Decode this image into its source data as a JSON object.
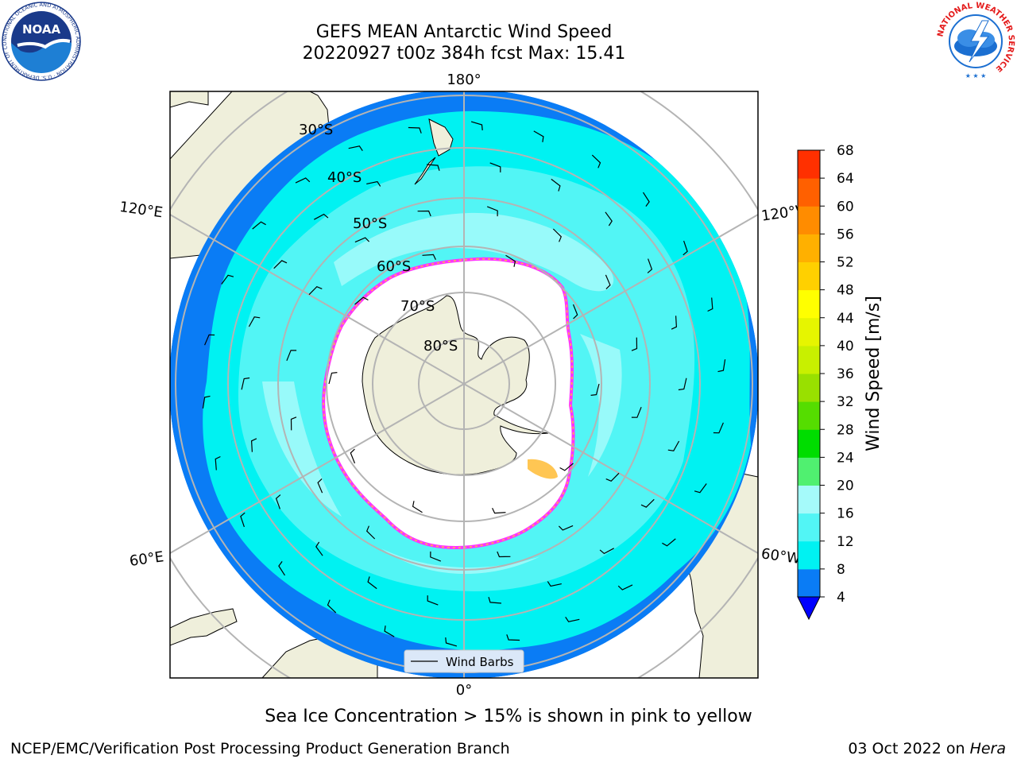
{
  "header": {
    "title": "GEFS MEAN Antarctic Wind Speed",
    "subtitle": "20220927 t00z 384h fcst   Max: 15.41"
  },
  "map": {
    "projection": "south-polar-stereographic",
    "longitude_labels": {
      "top": "180°",
      "bottom": "0°",
      "upper_left": "120°E",
      "lower_left": "60°E",
      "upper_right": "120°W",
      "lower_right": "60°W"
    },
    "latitude_labels": [
      "30°S",
      "40°S",
      "50°S",
      "60°S",
      "70°S",
      "80°S"
    ],
    "legend_label": "Wind Barbs",
    "colors": {
      "land": "#efefdb",
      "ice_sheet": "#ffffff",
      "speed_4_8": "#0a7cf5",
      "speed_8_12": "#00f2f2",
      "speed_12_16": "#52f5f5",
      "speed_16_20": "#a5fafa",
      "sea_ice_edge_pink": "#ff33ff",
      "sea_ice_edge_yellow": "#ffc040"
    }
  },
  "colorbar": {
    "label": "Wind Speed [m/s]",
    "ticks": [
      "4",
      "8",
      "12",
      "16",
      "20",
      "24",
      "28",
      "32",
      "36",
      "40",
      "44",
      "48",
      "52",
      "56",
      "60",
      "64",
      "68"
    ],
    "colors": [
      "#0a7cf5",
      "#00f2f2",
      "#52f5f5",
      "#a5fafa",
      "#50f070",
      "#00dd00",
      "#55dd00",
      "#99e000",
      "#c8f000",
      "#e6f500",
      "#ffff00",
      "#ffd000",
      "#ffb000",
      "#ff8c00",
      "#ff6000",
      "#ff3000",
      "#ff0000"
    ],
    "extend_color": "#0000ff"
  },
  "footer": {
    "caption": "Sea Ice Concentration > 15% is shown in pink to yellow",
    "credit": "NCEP/EMC/Verification Post Processing Product Generation Branch",
    "date": "03 Oct 2022 on",
    "machine": "Hera"
  },
  "logos": {
    "noaa_text": "NOAA",
    "noaa_ring_text": "NATIONAL OCEANIC AND ATMOSPHERIC ADMINISTRATION · U.S. DEPARTMENT OF COMMERCE",
    "nws_ring_text": "NATIONAL WEATHER SERVICE"
  }
}
